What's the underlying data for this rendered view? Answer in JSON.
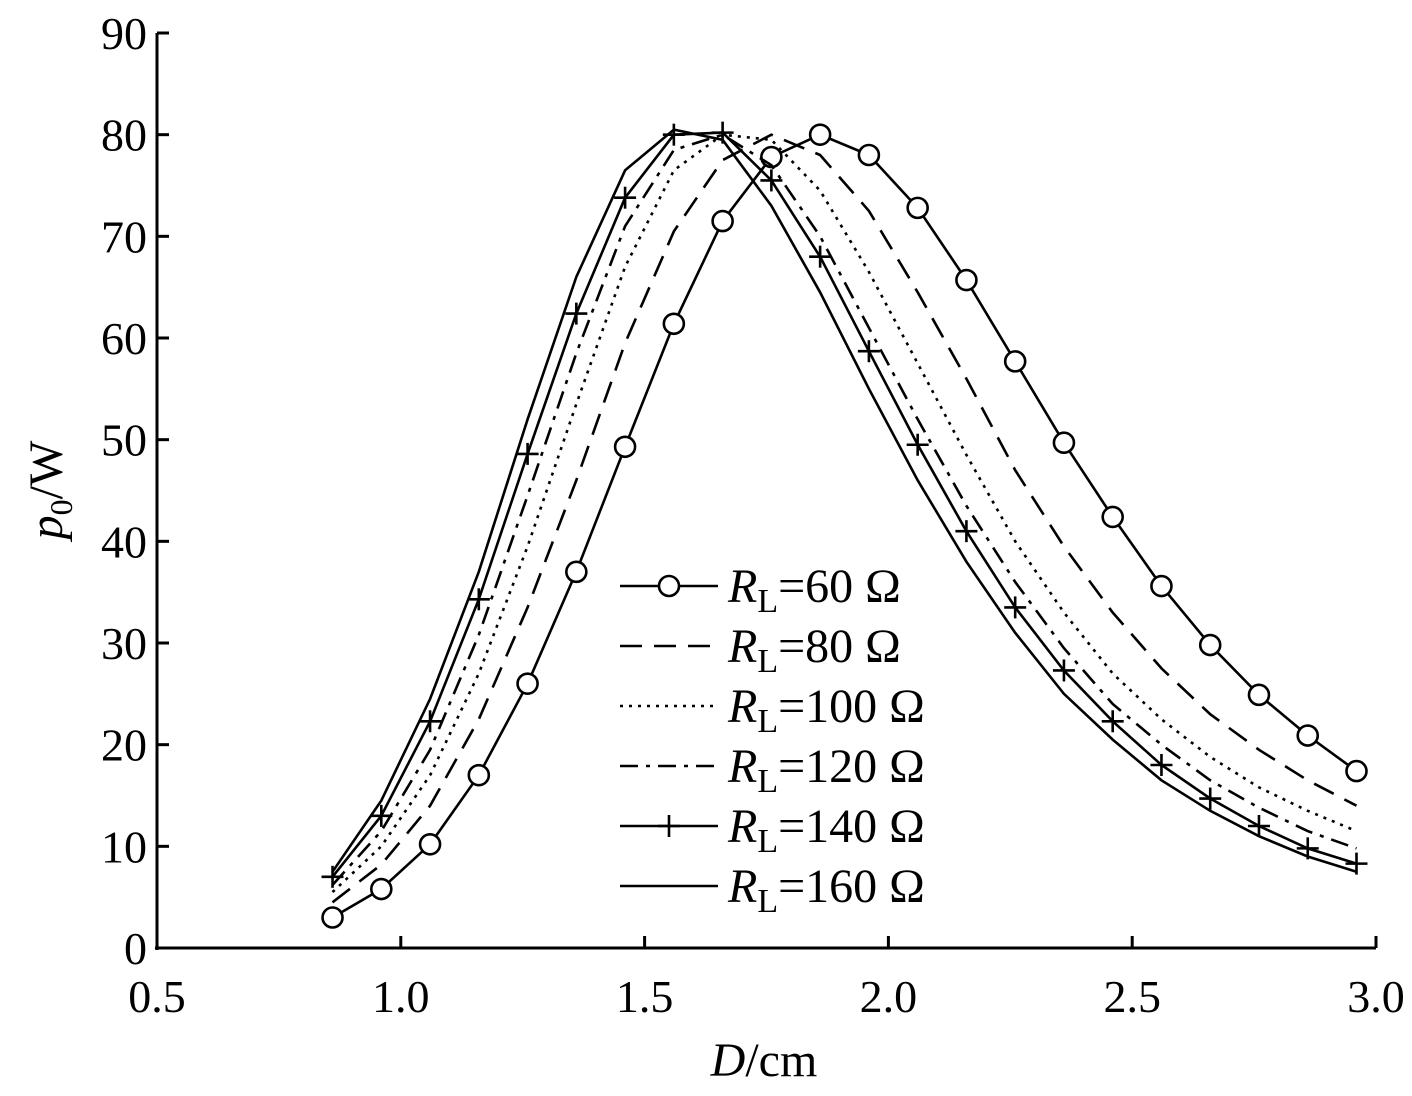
{
  "chart_data": {
    "type": "line",
    "title": "",
    "xlabel": {
      "var": "D",
      "unit": "/cm"
    },
    "ylabel": {
      "var": "p",
      "sub": "0",
      "unit": "/W"
    },
    "xlim": [
      0.5,
      3.0
    ],
    "ylim": [
      0,
      90
    ],
    "xticks": [
      0.5,
      1.0,
      1.5,
      2.0,
      2.5,
      3.0
    ],
    "xtick_labels": [
      "0.5",
      "1.0",
      "1.5",
      "2.0",
      "2.5",
      "3.0"
    ],
    "yticks": [
      0,
      10,
      20,
      30,
      40,
      50,
      60,
      70,
      80,
      90
    ],
    "ytick_labels": [
      "0",
      "10",
      "20",
      "30",
      "40",
      "50",
      "60",
      "70",
      "80",
      "90"
    ],
    "grid": false,
    "legend_position": "center",
    "x": [
      0.86,
      0.96,
      1.06,
      1.16,
      1.26,
      1.36,
      1.46,
      1.56,
      1.66,
      1.76,
      1.86,
      1.96,
      2.06,
      2.16,
      2.26,
      2.36,
      2.46,
      2.56,
      2.66,
      2.76,
      2.86,
      2.96
    ],
    "series": [
      {
        "name": "RL=60 Ω",
        "var": "R",
        "sub": "L",
        "rest": "=60 Ω",
        "style": "solid",
        "marker": "circle",
        "values": [
          3,
          5.8,
          10.2,
          17,
          26,
          37,
          49.3,
          61.4,
          71.5,
          77.8,
          80,
          78,
          72.8,
          65.7,
          57.7,
          49.7,
          42.4,
          35.6,
          29.8,
          24.9,
          20.9,
          17.4
        ]
      },
      {
        "name": "RL=80 Ω",
        "var": "R",
        "sub": "L",
        "rest": "=80 Ω",
        "style": "dashed",
        "marker": "none",
        "values": [
          4.5,
          8.2,
          14.0,
          22.5,
          33.5,
          46.0,
          59.5,
          70.5,
          77.5,
          80,
          78.0,
          72.5,
          64.5,
          56.0,
          47.0,
          39.5,
          33.0,
          27.5,
          23.0,
          19.5,
          16.5,
          14.0
        ]
      },
      {
        "name": "RL=100 Ω",
        "var": "R",
        "sub": "L",
        "rest": "=100 Ω",
        "style": "dotted",
        "marker": "none",
        "values": [
          5.5,
          10.0,
          17.0,
          27.0,
          39.5,
          53.5,
          67.0,
          76.5,
          80,
          79.5,
          74.5,
          66.5,
          57.5,
          48.5,
          40.0,
          33.0,
          27.0,
          22.5,
          18.8,
          15.8,
          13.5,
          11.5
        ]
      },
      {
        "name": "RL=120 Ω",
        "var": "R",
        "sub": "L",
        "rest": "=120 Ω",
        "style": "dashdot",
        "marker": "none",
        "values": [
          6.2,
          11.5,
          19.5,
          30.8,
          44.5,
          58.5,
          71.0,
          78.5,
          80,
          77.0,
          70.0,
          61.0,
          52.0,
          43.5,
          36.0,
          29.5,
          24.0,
          20.0,
          16.5,
          13.8,
          11.5,
          9.8
        ]
      },
      {
        "name": "RL=140 Ω",
        "var": "R",
        "sub": "L",
        "rest": "=140 Ω",
        "style": "solid",
        "marker": "plus",
        "values": [
          7,
          13,
          22.3,
          34.3,
          48.6,
          62.4,
          73.8,
          80,
          80.2,
          75.5,
          68,
          58.7,
          49.5,
          41,
          33.5,
          27.3,
          22.3,
          18,
          14.7,
          12,
          9.8,
          8.3
        ]
      },
      {
        "name": "RL=160 Ω",
        "var": "R",
        "sub": "L",
        "rest": "=160 Ω",
        "style": "solid",
        "marker": "none",
        "values": [
          7.5,
          14.5,
          24.5,
          37.0,
          52.0,
          66.0,
          76.5,
          80.5,
          79.5,
          73.0,
          64.5,
          55.0,
          46.0,
          38.0,
          31.0,
          25.0,
          20.5,
          16.5,
          13.5,
          11.0,
          9.0,
          7.5
        ]
      }
    ]
  }
}
